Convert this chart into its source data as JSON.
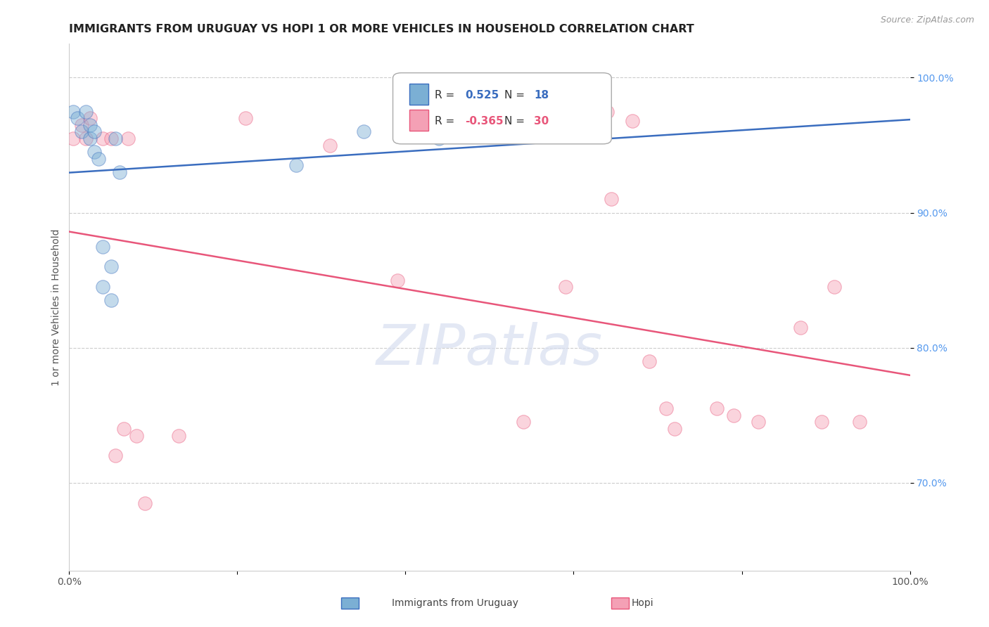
{
  "title": "IMMIGRANTS FROM URUGUAY VS HOPI 1 OR MORE VEHICLES IN HOUSEHOLD CORRELATION CHART",
  "source": "Source: ZipAtlas.com",
  "ylabel": "1 or more Vehicles in Household",
  "watermark_text": "ZIPatlas",
  "xlim": [
    0.0,
    1.0
  ],
  "ylim": [
    0.635,
    1.025
  ],
  "xticks": [
    0.0,
    0.2,
    0.4,
    0.6,
    0.8,
    1.0
  ],
  "xticklabels": [
    "0.0%",
    "",
    "",
    "",
    "",
    "100.0%"
  ],
  "ytick_positions": [
    0.7,
    0.8,
    0.9,
    1.0
  ],
  "yticklabels": [
    "70.0%",
    "80.0%",
    "90.0%",
    "100.0%"
  ],
  "uruguay_color": "#7bafd4",
  "hopi_color": "#f4a0b5",
  "uruguay_line_color": "#3a6dbf",
  "hopi_line_color": "#e8567a",
  "uruguay_R": 0.525,
  "uruguay_N": 18,
  "hopi_R": -0.365,
  "hopi_N": 30,
  "uruguay_x": [
    0.005,
    0.01,
    0.015,
    0.02,
    0.025,
    0.025,
    0.03,
    0.03,
    0.035,
    0.04,
    0.04,
    0.05,
    0.05,
    0.055,
    0.06,
    0.27,
    0.35,
    0.44
  ],
  "uruguay_y": [
    0.975,
    0.97,
    0.96,
    0.975,
    0.965,
    0.955,
    0.96,
    0.945,
    0.94,
    0.875,
    0.845,
    0.86,
    0.835,
    0.955,
    0.93,
    0.935,
    0.96,
    0.955
  ],
  "hopi_x": [
    0.005,
    0.015,
    0.02,
    0.025,
    0.04,
    0.05,
    0.055,
    0.065,
    0.07,
    0.08,
    0.09,
    0.13,
    0.21,
    0.31,
    0.39,
    0.54,
    0.59,
    0.64,
    0.645,
    0.67,
    0.69,
    0.71,
    0.72,
    0.77,
    0.79,
    0.82,
    0.87,
    0.895,
    0.91,
    0.94
  ],
  "hopi_y": [
    0.955,
    0.965,
    0.955,
    0.97,
    0.955,
    0.955,
    0.72,
    0.74,
    0.955,
    0.735,
    0.685,
    0.735,
    0.97,
    0.95,
    0.85,
    0.745,
    0.845,
    0.975,
    0.91,
    0.968,
    0.79,
    0.755,
    0.74,
    0.755,
    0.75,
    0.745,
    0.815,
    0.745,
    0.845,
    0.745
  ],
  "grid_color": "#cccccc",
  "background_color": "#ffffff",
  "title_fontsize": 11.5,
  "axis_fontsize": 10,
  "tick_fontsize": 10,
  "legend_fontsize": 11,
  "marker_size": 14,
  "marker_alpha": 0.45,
  "line_width": 1.8
}
